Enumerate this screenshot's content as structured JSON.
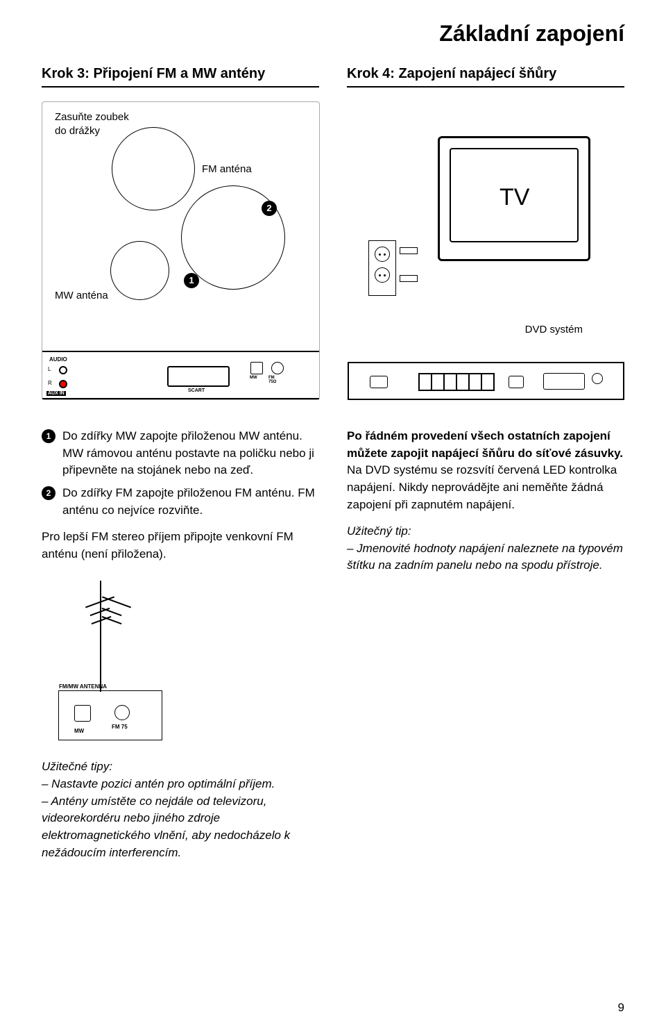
{
  "page_title": "Základní zapojení",
  "page_number": "9",
  "step3": {
    "heading": "Krok 3: Připojení FM a MW antény",
    "label_zasunte_l1": "Zasuňte zoubek",
    "label_zasunte_l2": "do drážky",
    "label_fm": "FM anténa",
    "label_mw": "MW anténa",
    "badge1": "1",
    "badge2": "2",
    "panel": {
      "audio": "AUDIO",
      "l": "L",
      "r": "R",
      "auxin": "AUX IN",
      "scart": "SCART",
      "mw": "MW",
      "fm": "FM\n75Ω"
    }
  },
  "step4": {
    "heading": "Krok 4: Zapojení napájecí šňůry",
    "tv_label": "TV",
    "dvd_label": "DVD systém"
  },
  "left_col": {
    "item1_num": "1",
    "item1_text_a": "Do zdířky MW zapojte přiloženou MW anténu. MW rámovou anténu postavte na poličku nebo ji připevněte na stojánek nebo na zeď.",
    "item2_num": "2",
    "item2_text": "Do zdířky FM zapojte přiloženou FM anténu. FM anténu co nejvíce rozviňte.",
    "para_fm_stereo": "Pro lepší FM stereo příjem připojte venkovní FM anténu (není přiložena).",
    "ant_panel": {
      "header": "FM/MW ANTENNA",
      "mw": "MW",
      "fm": "FM  75"
    },
    "tips_head": "Užitečné tipy:",
    "tip1": "– Nastavte pozici antén pro optimální příjem.",
    "tip2": "– Antény umístěte co nejdále od televizoru, videorekordéru nebo jiného zdroje elektromagnetického vlnění, aby nedocházelo k nežádoucím interferencím."
  },
  "right_col": {
    "p1": "Po řádném provedení všech ostatních zapojení můžete zapojit napájecí šňůru do síťové zásuvky.",
    "p2": "Na DVD systému se rozsvítí červená LED kontrolka napájení. Nikdy neprovádějte ani neměňte žádná zapojení při zapnutém napájení.",
    "tip_head": "Užitečný tip:",
    "tip_body": "– Jmenovité hodnoty napájení naleznete na typovém štítku na zadním panelu nebo na spodu přístroje."
  }
}
